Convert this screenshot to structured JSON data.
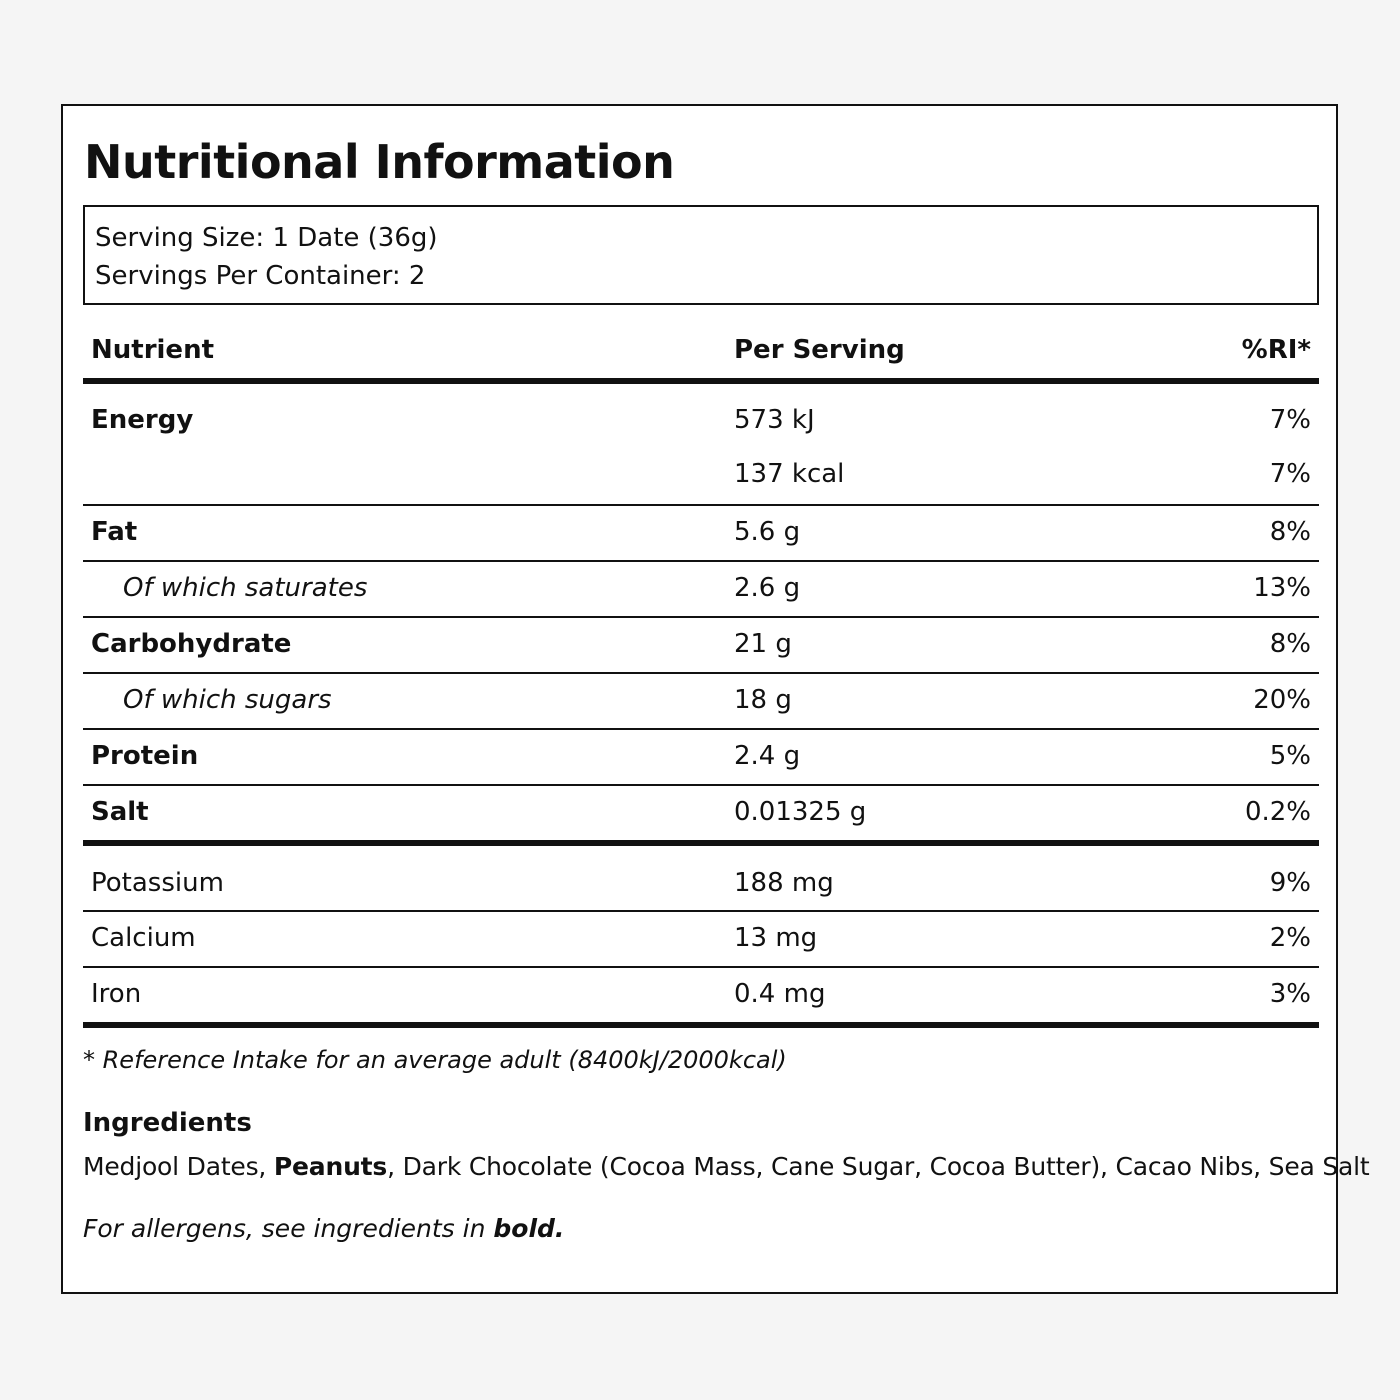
{
  "label": {
    "title": "Nutritional Information",
    "serving": {
      "size": "Serving Size: 1 Date (36g)",
      "per_container": "Servings Per Container: 2"
    },
    "table": {
      "headers": {
        "nutrient": "Nutrient",
        "per_serving": "Per Serving",
        "ri": "%RI*"
      },
      "energy": {
        "name": "Energy",
        "kj": "573 kJ",
        "kj_ri": "7%",
        "kcal": "137 kcal",
        "kcal_ri": "7%"
      },
      "rows": [
        {
          "name": "Fat",
          "value": "5.6 g",
          "ri": "8%"
        },
        {
          "name": "Of which saturates",
          "value": "2.6 g",
          "ri": "13%"
        },
        {
          "name": "Carbohydrate",
          "value": "21 g",
          "ri": "8%"
        },
        {
          "name": "Of which sugars",
          "value": "18 g",
          "ri": "20%"
        },
        {
          "name": "Protein",
          "value": "2.4 g",
          "ri": "5%"
        },
        {
          "name": "Salt",
          "value": "0.01325 g",
          "ri": "0.2%"
        }
      ],
      "minerals": [
        {
          "name": "Potassium",
          "value": "188 mg",
          "ri": "9%"
        },
        {
          "name": "Calcium",
          "value": "13 mg",
          "ri": "2%"
        },
        {
          "name": "Iron",
          "value": "0.4 mg",
          "ri": "3%"
        }
      ]
    },
    "footnote": "* Reference Intake for an average adult (8400kJ/2000kcal)",
    "ingredients": {
      "title": "Ingredients",
      "item1": "Medjool Dates, ",
      "allergen": "Peanuts",
      "rest": ", Dark Chocolate (Cocoa Mass, Cane Sugar, Cocoa Butter), Cacao Nibs, Sea Salt"
    },
    "allergen_note": {
      "text": "For allergens, see ingredients in ",
      "bold": "bold."
    }
  }
}
